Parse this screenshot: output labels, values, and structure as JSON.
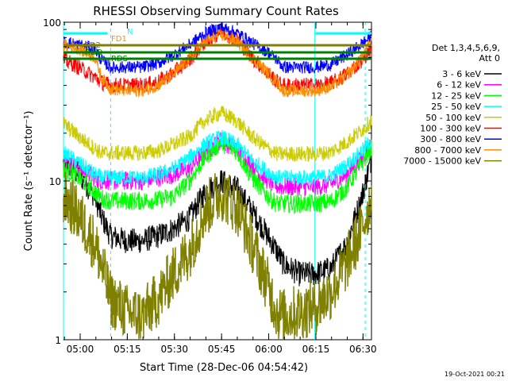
{
  "chart_data": {
    "type": "line",
    "title": "RHESSI Observing Summary Count Rates",
    "xlabel": "Start Time (28-Dec-06 04:54:42)",
    "ylabel": "Count Rate (s⁻¹ detector⁻¹)",
    "yscale": "log",
    "xlim": [
      0,
      98
    ],
    "ylim": [
      1,
      100
    ],
    "x_unit": "minutes after 04:54:42",
    "x_ticks": [
      {
        "x": 5.3,
        "label": "05:00"
      },
      {
        "x": 20.3,
        "label": "05:15"
      },
      {
        "x": 35.3,
        "label": "05:30"
      },
      {
        "x": 50.3,
        "label": "05:45"
      },
      {
        "x": 65.3,
        "label": "06:00"
      },
      {
        "x": 80.3,
        "label": "06:15"
      },
      {
        "x": 95.3,
        "label": "06:30"
      }
    ],
    "y_ticks": [
      {
        "y": 1,
        "label": "1"
      },
      {
        "y": 10,
        "label": "10"
      },
      {
        "y": 100,
        "label": "100"
      }
    ],
    "legend_header": [
      "Det 1,3,4,5,6,9,",
      "Att 0"
    ],
    "legend_position": "right",
    "x": [
      0,
      5,
      10,
      12,
      15,
      20,
      25,
      30,
      35,
      40,
      45,
      50,
      55,
      60,
      65,
      68,
      70,
      75,
      80,
      85,
      90,
      95,
      98
    ],
    "series": [
      {
        "name": "3 - 6 keV",
        "color": "#000000",
        "values": [
          13,
          11,
          8,
          6,
          4.5,
          4.2,
          4.2,
          4.5,
          5,
          5.8,
          8.5,
          10,
          9,
          6.5,
          4.5,
          3.6,
          3,
          2.6,
          2.6,
          2.8,
          4,
          8,
          14
        ]
      },
      {
        "name": "6 - 12 keV",
        "color": "#ff00ff",
        "values": [
          14,
          12,
          10.5,
          10,
          10,
          10,
          10,
          10.5,
          11,
          12,
          15,
          18,
          16,
          12.5,
          10,
          9.3,
          9.2,
          9.2,
          9.2,
          9.5,
          11,
          14,
          17
        ]
      },
      {
        "name": "12 - 25 keV",
        "color": "#00ff00",
        "values": [
          12,
          10.5,
          8.5,
          7.8,
          7.5,
          7.5,
          7.5,
          7.6,
          8,
          10,
          14,
          17.5,
          15.5,
          10.5,
          8,
          7.2,
          7.2,
          7.2,
          7.2,
          7.4,
          9,
          13,
          16
        ]
      },
      {
        "name": "25 - 50 keV",
        "color": "#00ffff",
        "values": [
          15,
          13,
          11,
          10.5,
          10.5,
          10.5,
          10.5,
          11,
          12,
          14,
          17,
          19,
          17,
          13.5,
          11.5,
          10.5,
          10.5,
          10.5,
          10.5,
          10.8,
          12.5,
          15.5,
          18
        ]
      },
      {
        "name": "50 - 100 keV",
        "color": "#cccc00",
        "values": [
          23,
          19,
          16,
          15,
          15,
          15,
          15,
          15.5,
          17,
          19,
          24,
          27,
          24,
          19,
          16,
          14.8,
          14.8,
          14.8,
          14.8,
          15.2,
          17.5,
          21,
          24
        ]
      },
      {
        "name": "100 - 300 keV",
        "color": "#ff0000",
        "values": [
          58,
          52,
          45,
          42,
          40,
          40,
          40,
          42,
          48,
          58,
          75,
          88,
          78,
          60,
          48,
          42,
          40,
          40,
          40,
          41,
          47,
          58,
          68
        ]
      },
      {
        "name": "300 - 800 keV",
        "color": "#0000ff",
        "values": [
          75,
          72,
          68,
          58,
          52,
          52,
          52,
          55,
          62,
          72,
          85,
          93,
          86,
          74,
          65,
          58,
          52,
          52,
          52,
          54,
          62,
          73,
          82
        ]
      },
      {
        "name": "800 - 7000 keV",
        "color": "#ff8c00",
        "values": [
          72,
          68,
          60,
          45,
          38,
          37,
          37,
          40,
          47,
          58,
          75,
          83,
          76,
          60,
          48,
          42,
          37,
          37,
          37,
          39,
          46,
          60,
          76
        ]
      },
      {
        "name": "7000 - 15000 keV",
        "color": "#808000",
        "values": [
          8,
          6,
          4,
          3,
          1.8,
          1.5,
          1.4,
          1.8,
          2.6,
          3.6,
          6.5,
          8.5,
          7,
          4,
          2.2,
          1.5,
          1.4,
          1.5,
          1.6,
          2,
          3,
          5,
          8
        ]
      }
    ],
    "annotations": {
      "texts": [
        "N",
        "FD1",
        "FD2",
        "RDD",
        "RDS"
      ],
      "vertical_lines_solid": [
        0,
        80
      ],
      "vertical_lines_dashed": [
        15,
        96
      ]
    }
  },
  "footer": {
    "date": "19-Oct-2021 00:21"
  }
}
